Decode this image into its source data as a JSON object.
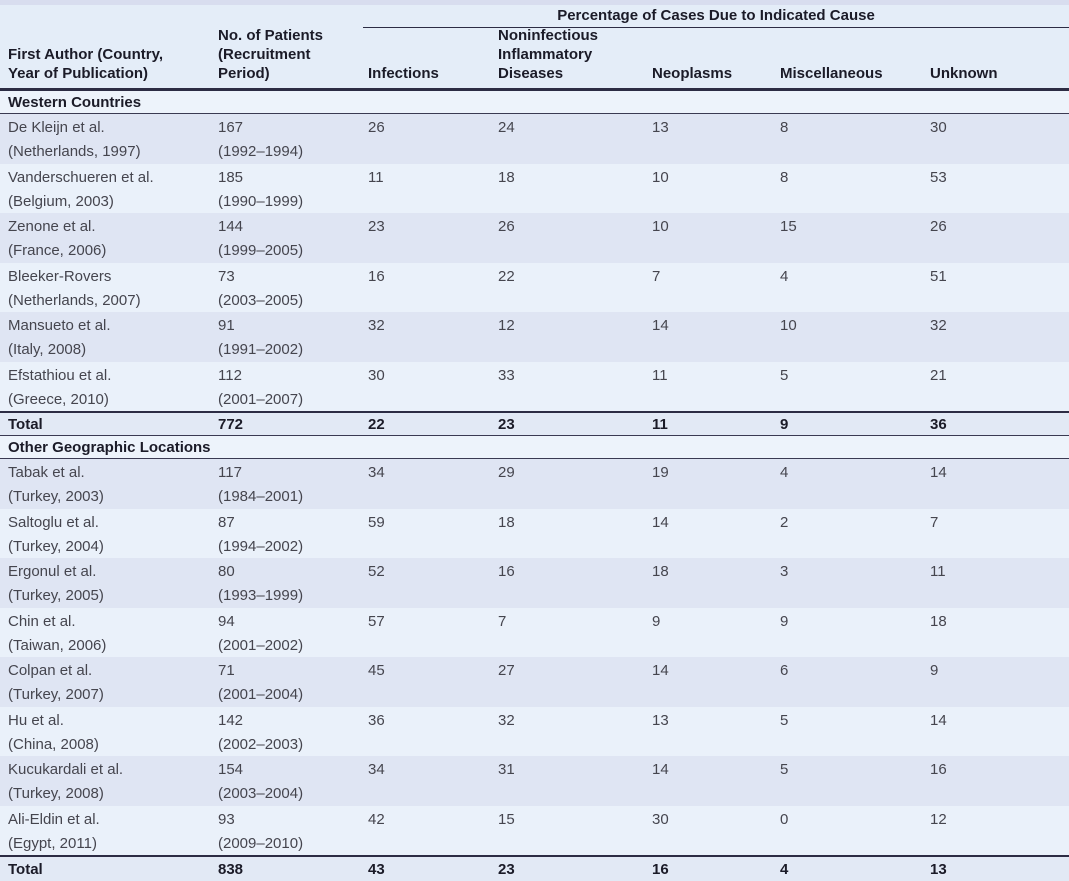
{
  "colors": {
    "row_stripe_dark": "#dfe5f3",
    "row_stripe_light": "#eaf1fa",
    "header_bg": "#e4edf8",
    "section_header_bg": "#edf3fb",
    "total_row_bg": "#e2e9f5",
    "rule_thick": "#2c2c44",
    "rule_thin": "#3a3a52",
    "text_bold": "#1b1b28",
    "text_body": "#45454e",
    "top_strip": "#d8ddef"
  },
  "table": {
    "span_header": "Percentage of Cases Due to Indicated Cause",
    "columns": [
      "First Author (Country,\nYear of Publication)",
      "No. of Patients\n(Recruitment\nPeriod)",
      "Infections",
      "Noninfectious\nInflammatory\nDiseases",
      "Neoplasms",
      "Miscellaneous",
      "Unknown"
    ],
    "sections": [
      {
        "title": "Western Countries",
        "rows": [
          {
            "author": "De Kleijn et al.",
            "location": "(Netherlands, 1997)",
            "patients": "167",
            "period": "(1992–1994)",
            "values": [
              "26",
              "24",
              "13",
              "8",
              "30"
            ]
          },
          {
            "author": "Vanderschueren et al.",
            "location": "(Belgium, 2003)",
            "patients": "185",
            "period": "(1990–1999)",
            "values": [
              "11",
              "18",
              "10",
              "8",
              "53"
            ]
          },
          {
            "author": "Zenone et al.",
            "location": "(France, 2006)",
            "patients": "144",
            "period": "(1999–2005)",
            "values": [
              "23",
              "26",
              "10",
              "15",
              "26"
            ]
          },
          {
            "author": "Bleeker-Rovers",
            "location": "(Netherlands, 2007)",
            "patients": "73",
            "period": "(2003–2005)",
            "values": [
              "16",
              "22",
              "7",
              "4",
              "51"
            ]
          },
          {
            "author": "Mansueto et al.",
            "location": "(Italy, 2008)",
            "patients": "91",
            "period": "(1991–2002)",
            "values": [
              "32",
              "12",
              "14",
              "10",
              "32"
            ]
          },
          {
            "author": "Efstathiou et al.",
            "location": "(Greece, 2010)",
            "patients": "112",
            "period": "(2001–2007)",
            "values": [
              "30",
              "33",
              "11",
              "5",
              "21"
            ]
          }
        ],
        "total": {
          "label": "Total",
          "patients": "772",
          "values": [
            "22",
            "23",
            "11",
            "9",
            "36"
          ]
        }
      },
      {
        "title": "Other Geographic Locations",
        "rows": [
          {
            "author": "Tabak et al.",
            "location": "(Turkey, 2003)",
            "patients": "117",
            "period": "(1984–2001)",
            "values": [
              "34",
              "29",
              "19",
              "4",
              "14"
            ]
          },
          {
            "author": "Saltoglu et al.",
            "location": "(Turkey, 2004)",
            "patients": "87",
            "period": "(1994–2002)",
            "values": [
              "59",
              "18",
              "14",
              "2",
              "7"
            ]
          },
          {
            "author": "Ergonul et al.",
            "location": "(Turkey, 2005)",
            "patients": "80",
            "period": "(1993–1999)",
            "values": [
              "52",
              "16",
              "18",
              "3",
              "11"
            ]
          },
          {
            "author": "Chin et al.",
            "location": "(Taiwan, 2006)",
            "patients": "94",
            "period": "(2001–2002)",
            "values": [
              "57",
              "7",
              "9",
              "9",
              "18"
            ]
          },
          {
            "author": "Colpan et al.",
            "location": "(Turkey, 2007)",
            "patients": "71",
            "period": "(2001–2004)",
            "values": [
              "45",
              "27",
              "14",
              "6",
              "9"
            ]
          },
          {
            "author": "Hu et al.",
            "location": "(China, 2008)",
            "patients": "142",
            "period": "(2002–2003)",
            "values": [
              "36",
              "32",
              "13",
              "5",
              "14"
            ]
          },
          {
            "author": "Kucukardali et al.",
            "location": "(Turkey, 2008)",
            "patients": "154",
            "period": "(2003–2004)",
            "values": [
              "34",
              "31",
              "14",
              "5",
              "16"
            ]
          },
          {
            "author": "Ali-Eldin et al.",
            "location": "(Egypt, 2011)",
            "patients": "93",
            "period": "(2009–2010)",
            "values": [
              "42",
              "15",
              "30",
              "0",
              "12"
            ]
          }
        ],
        "total": {
          "label": "Total",
          "patients": "838",
          "values": [
            "43",
            "23",
            "16",
            "4",
            "13"
          ]
        }
      }
    ]
  }
}
